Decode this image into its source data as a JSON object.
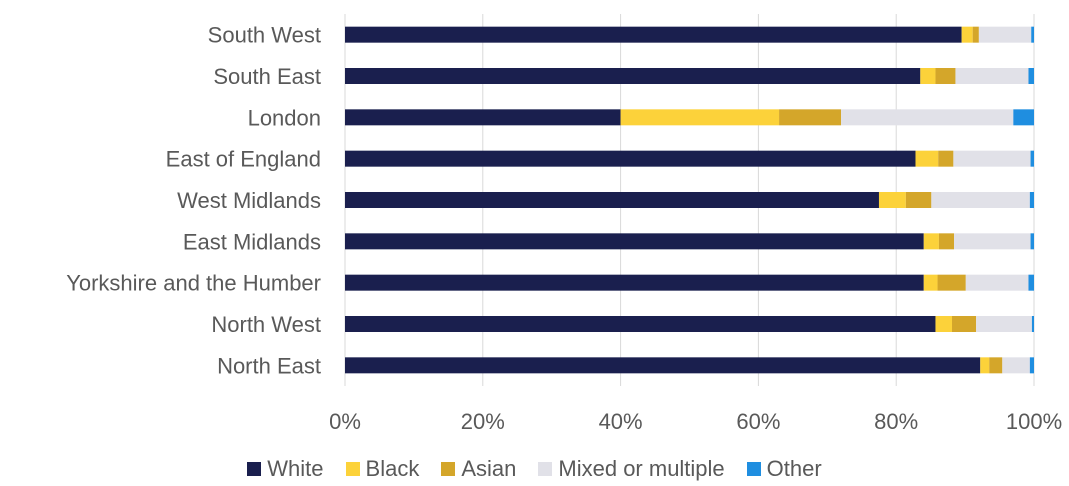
{
  "chart_data": {
    "type": "bar",
    "orientation": "horizontal",
    "stacked": true,
    "categories": [
      "South West",
      "South East",
      "London",
      "East of England",
      "West Midlands",
      "East Midlands",
      "Yorkshire and the Humber",
      "North West",
      "North East"
    ],
    "series": [
      {
        "name": "White",
        "color": "#1a1f4e",
        "values": [
          89.5,
          83.5,
          40,
          82.8,
          77.5,
          84,
          84,
          85.7,
          92.2
        ]
      },
      {
        "name": "Black",
        "color": "#fcd23a",
        "values": [
          1.6,
          2.2,
          23,
          3.3,
          3.9,
          2.2,
          2,
          2.4,
          1.3
        ]
      },
      {
        "name": "Asian",
        "color": "#d4a62a",
        "values": [
          0.9,
          2.9,
          9,
          2.2,
          3.7,
          2.2,
          4.1,
          3.5,
          1.9
        ]
      },
      {
        "name": "Mixed or multiple",
        "color": "#e1e1e8",
        "values": [
          7.6,
          10.6,
          25,
          11.2,
          14.3,
          11.1,
          9.1,
          8.1,
          4.0
        ]
      },
      {
        "name": "Other",
        "color": "#1f8ee0",
        "values": [
          0.4,
          0.8,
          3,
          0.5,
          0.6,
          0.5,
          0.8,
          0.3,
          0.6
        ]
      }
    ],
    "xticks": [
      "0%",
      "20%",
      "40%",
      "60%",
      "80%",
      "100%"
    ],
    "xlim": [
      0,
      100
    ],
    "grid": true,
    "legend_position": "bottom",
    "title": "",
    "xlabel": "",
    "ylabel": ""
  }
}
